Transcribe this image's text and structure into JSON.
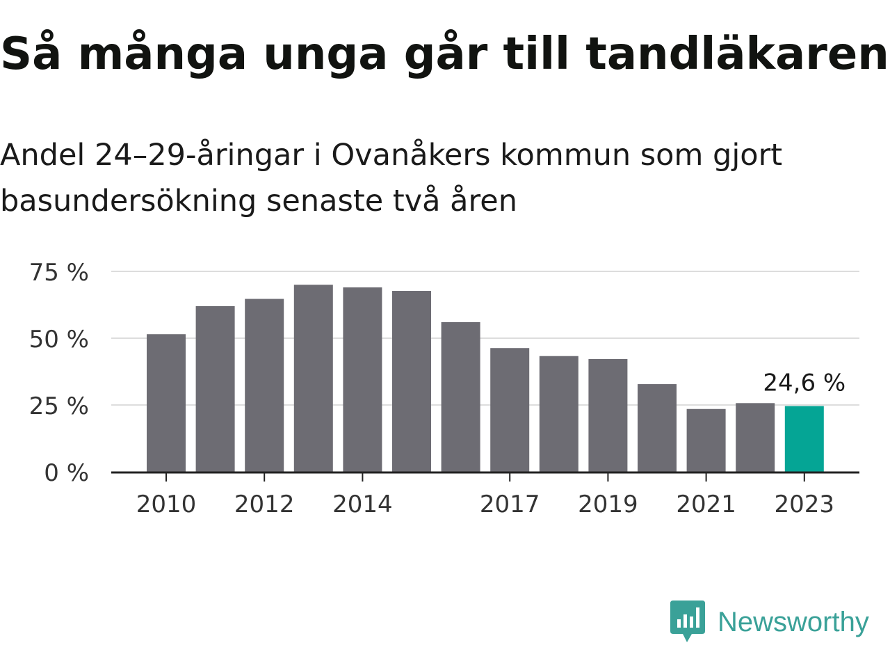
{
  "title": "Så många unga går till tandläkaren",
  "subtitle": "Andel 24–29-åringar i Ovanåkers kommun som gjort basundersökning senaste två åren",
  "brand": {
    "name": "Newsworthy",
    "color": "#3aa198",
    "icon": "newsworthy-logo-icon"
  },
  "chart_data": {
    "type": "bar",
    "categories": [
      "2010",
      "2011",
      "2012",
      "2013",
      "2014",
      "2015",
      "2016",
      "2017",
      "2018",
      "2019",
      "2020",
      "2021",
      "2022",
      "2023"
    ],
    "values": [
      51.5,
      62,
      64.7,
      70,
      69,
      67.7,
      56,
      46.3,
      43.3,
      42.2,
      32.8,
      23.5,
      25.7,
      24.6
    ],
    "x_tick_labels": [
      "2010",
      "",
      "2012",
      "",
      "2014",
      "",
      "",
      "2017",
      "",
      "2019",
      "",
      "2021",
      "",
      "2023"
    ],
    "y_ticks": [
      0,
      25,
      50,
      75
    ],
    "y_tick_labels": [
      "0 %",
      "25 %",
      "50 %",
      "75 %"
    ],
    "ylim": [
      0,
      75
    ],
    "grid": true,
    "highlight_index": 13,
    "highlight_label": "24,6 %",
    "colors": {
      "bar": "#6d6c73",
      "highlight": "#05a595",
      "grid": "#dddddd",
      "axis": "#222222"
    }
  }
}
